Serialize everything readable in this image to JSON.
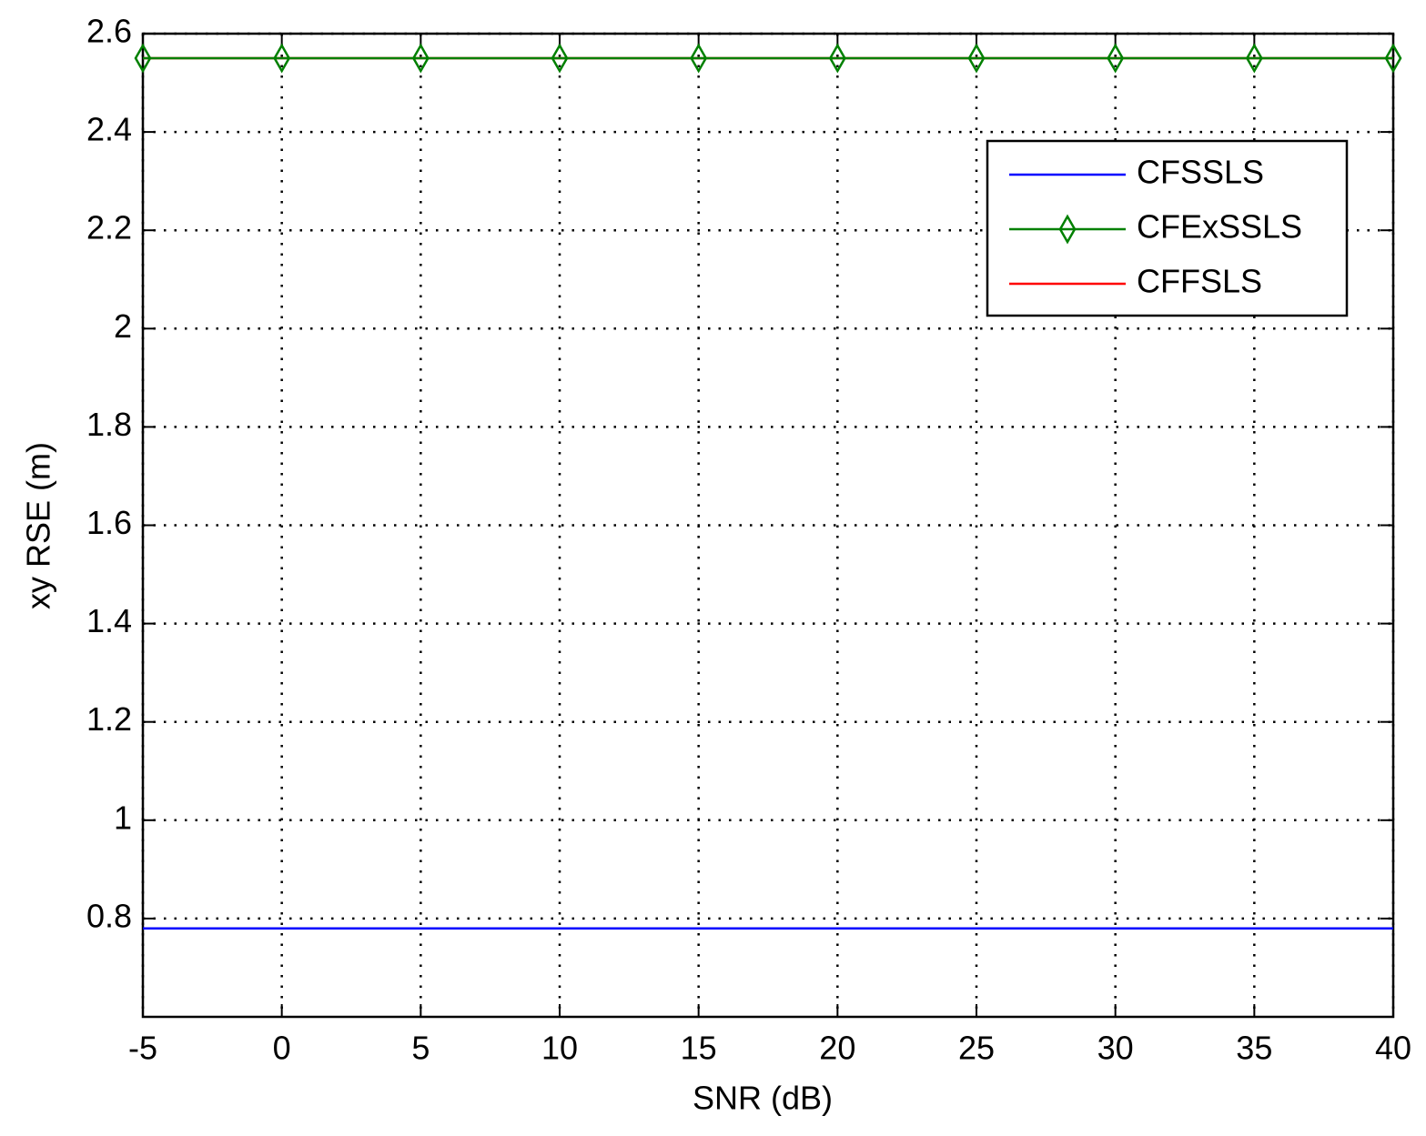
{
  "chart_data": {
    "type": "line",
    "x_label": "SNR (dB)",
    "y_label": "xy RSE (m)",
    "x": [
      -5,
      0,
      5,
      10,
      15,
      20,
      25,
      30,
      35,
      40
    ],
    "series": [
      {
        "name": "CFSSLS",
        "color": "#0000ff",
        "marker": "none",
        "values": [
          0.78,
          0.78,
          0.78,
          0.78,
          0.78,
          0.78,
          0.78,
          0.78,
          0.78,
          0.78
        ]
      },
      {
        "name": "CFExSSLS",
        "color": "#008000",
        "marker": "diamond",
        "values": [
          2.55,
          2.55,
          2.55,
          2.55,
          2.55,
          2.55,
          2.55,
          2.55,
          2.55,
          2.55
        ]
      },
      {
        "name": "CFFSLS",
        "color": "#ff0000",
        "marker": "none",
        "values": [
          2.55,
          2.55,
          2.55,
          2.55,
          2.55,
          2.55,
          2.55,
          2.55,
          2.55,
          2.55
        ]
      }
    ],
    "xlim": [
      -5,
      40
    ],
    "xticks": [
      -5,
      0,
      5,
      10,
      15,
      20,
      25,
      30,
      35,
      40
    ],
    "ylim": [
      0.6,
      2.6
    ],
    "yticks": [
      0.8,
      1,
      1.2,
      1.4,
      1.6,
      1.8,
      2,
      2.2,
      2.4,
      2.6
    ],
    "grid": true,
    "legend": "northeast"
  }
}
